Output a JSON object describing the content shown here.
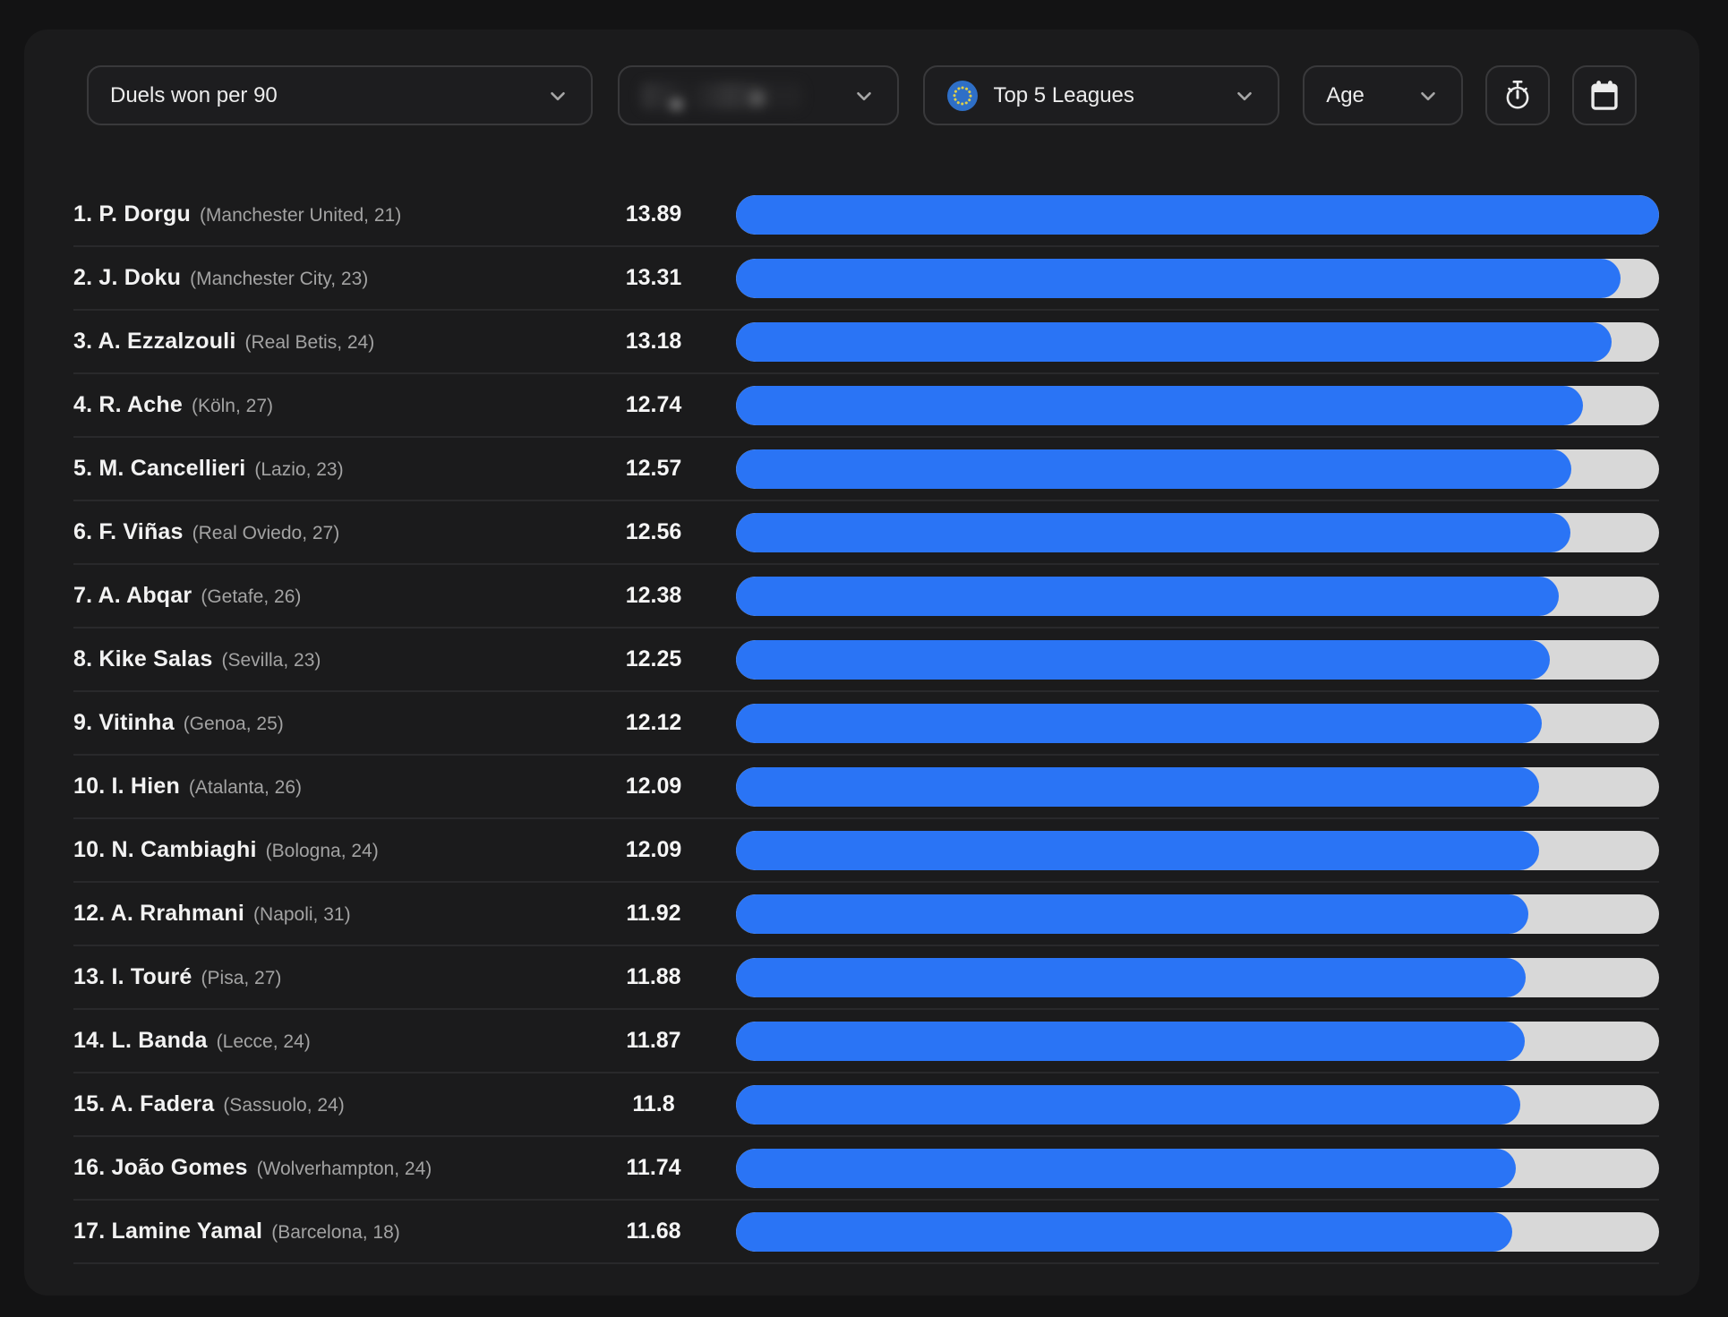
{
  "colors": {
    "bar_fill": "#2a74f5",
    "bar_track": "#d8d8d8",
    "eu_flag_blue": "#2e6fc7",
    "eu_flag_stars": "#dfcf4a"
  },
  "filters": {
    "metric": {
      "label": "Duels won per 90"
    },
    "season": {
      "label": "",
      "redacted": true
    },
    "league": {
      "label": "Top 5 Leagues",
      "icon": "eu-flag-icon"
    },
    "age": {
      "label": "Age"
    }
  },
  "toolbar": {
    "timer_button_icon": "stopwatch-icon",
    "calendar_button_icon": "calendar-icon"
  },
  "leaderboard": {
    "metric": "Duels won per 90",
    "max_value": 13.89,
    "rows": [
      {
        "rank": "1",
        "name": "P. Dorgu",
        "team": "Manchester United",
        "age": "21",
        "value": 13.89
      },
      {
        "rank": "2",
        "name": "J. Doku",
        "team": "Manchester City",
        "age": "23",
        "value": 13.31
      },
      {
        "rank": "3",
        "name": "A. Ezzalzouli",
        "team": "Real Betis",
        "age": "24",
        "value": 13.18
      },
      {
        "rank": "4",
        "name": "R. Ache",
        "team": "Köln",
        "age": "27",
        "value": 12.74
      },
      {
        "rank": "5",
        "name": "M. Cancellieri",
        "team": "Lazio",
        "age": "23",
        "value": 12.57
      },
      {
        "rank": "6",
        "name": "F. Viñas",
        "team": "Real Oviedo",
        "age": "27",
        "value": 12.56
      },
      {
        "rank": "7",
        "name": "A. Abqar",
        "team": "Getafe",
        "age": "26",
        "value": 12.38
      },
      {
        "rank": "8",
        "name": "Kike Salas",
        "team": "Sevilla",
        "age": "23",
        "value": 12.25
      },
      {
        "rank": "9",
        "name": "Vitinha",
        "team": "Genoa",
        "age": "25",
        "value": 12.12
      },
      {
        "rank": "10",
        "name": "I. Hien",
        "team": "Atalanta",
        "age": "26",
        "value": 12.09
      },
      {
        "rank": "10",
        "name": "N. Cambiaghi",
        "team": "Bologna",
        "age": "24",
        "value": 12.09
      },
      {
        "rank": "12",
        "name": "A. Rrahmani",
        "team": "Napoli",
        "age": "31",
        "value": 11.92
      },
      {
        "rank": "13",
        "name": "I. Touré",
        "team": "Pisa",
        "age": "27",
        "value": 11.88
      },
      {
        "rank": "14",
        "name": "L. Banda",
        "team": "Lecce",
        "age": "24",
        "value": 11.87
      },
      {
        "rank": "15",
        "name": "A. Fadera",
        "team": "Sassuolo",
        "age": "24",
        "value": 11.8
      },
      {
        "rank": "16",
        "name": "João Gomes",
        "team": "Wolverhampton",
        "age": "24",
        "value": 11.74
      },
      {
        "rank": "17",
        "name": "Lamine Yamal",
        "team": "Barcelona",
        "age": "18",
        "value": 11.68
      }
    ]
  }
}
